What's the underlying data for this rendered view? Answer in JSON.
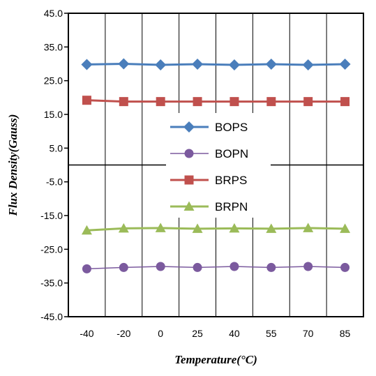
{
  "chart_data": {
    "type": "line",
    "title": "",
    "xlabel": "Temperature(°C)",
    "ylabel": "Flux Density(Gauss)",
    "categories": [
      "-40",
      "-20",
      "0",
      "25",
      "40",
      "55",
      "70",
      "85"
    ],
    "y_ticks": [
      "45.0",
      "35.0",
      "25.0",
      "15.0",
      "5.0",
      "-5.0",
      "-15.0",
      "-25.0",
      "-35.0",
      "-45.0"
    ],
    "ylim": [
      -45,
      45
    ],
    "grid": "vertical",
    "legend_position": "center-left",
    "series": [
      {
        "name": "BOPS",
        "color": "#4a7ebb",
        "marker": "diamond",
        "values": [
          29.8,
          30.0,
          29.7,
          29.9,
          29.7,
          29.9,
          29.7,
          29.9
        ]
      },
      {
        "name": "BOPN",
        "color": "#7b5a9e",
        "marker": "circle",
        "values": [
          -30.8,
          -30.4,
          -30.1,
          -30.4,
          -30.1,
          -30.4,
          -30.1,
          -30.4
        ]
      },
      {
        "name": "BRPS",
        "color": "#c0504d",
        "marker": "square",
        "values": [
          19.2,
          18.8,
          18.8,
          18.8,
          18.8,
          18.8,
          18.8,
          18.8
        ]
      },
      {
        "name": "BRPN",
        "color": "#9bbb59",
        "marker": "triangle",
        "values": [
          -19.4,
          -18.8,
          -18.7,
          -18.9,
          -18.8,
          -18.9,
          -18.7,
          -18.9
        ]
      }
    ]
  }
}
